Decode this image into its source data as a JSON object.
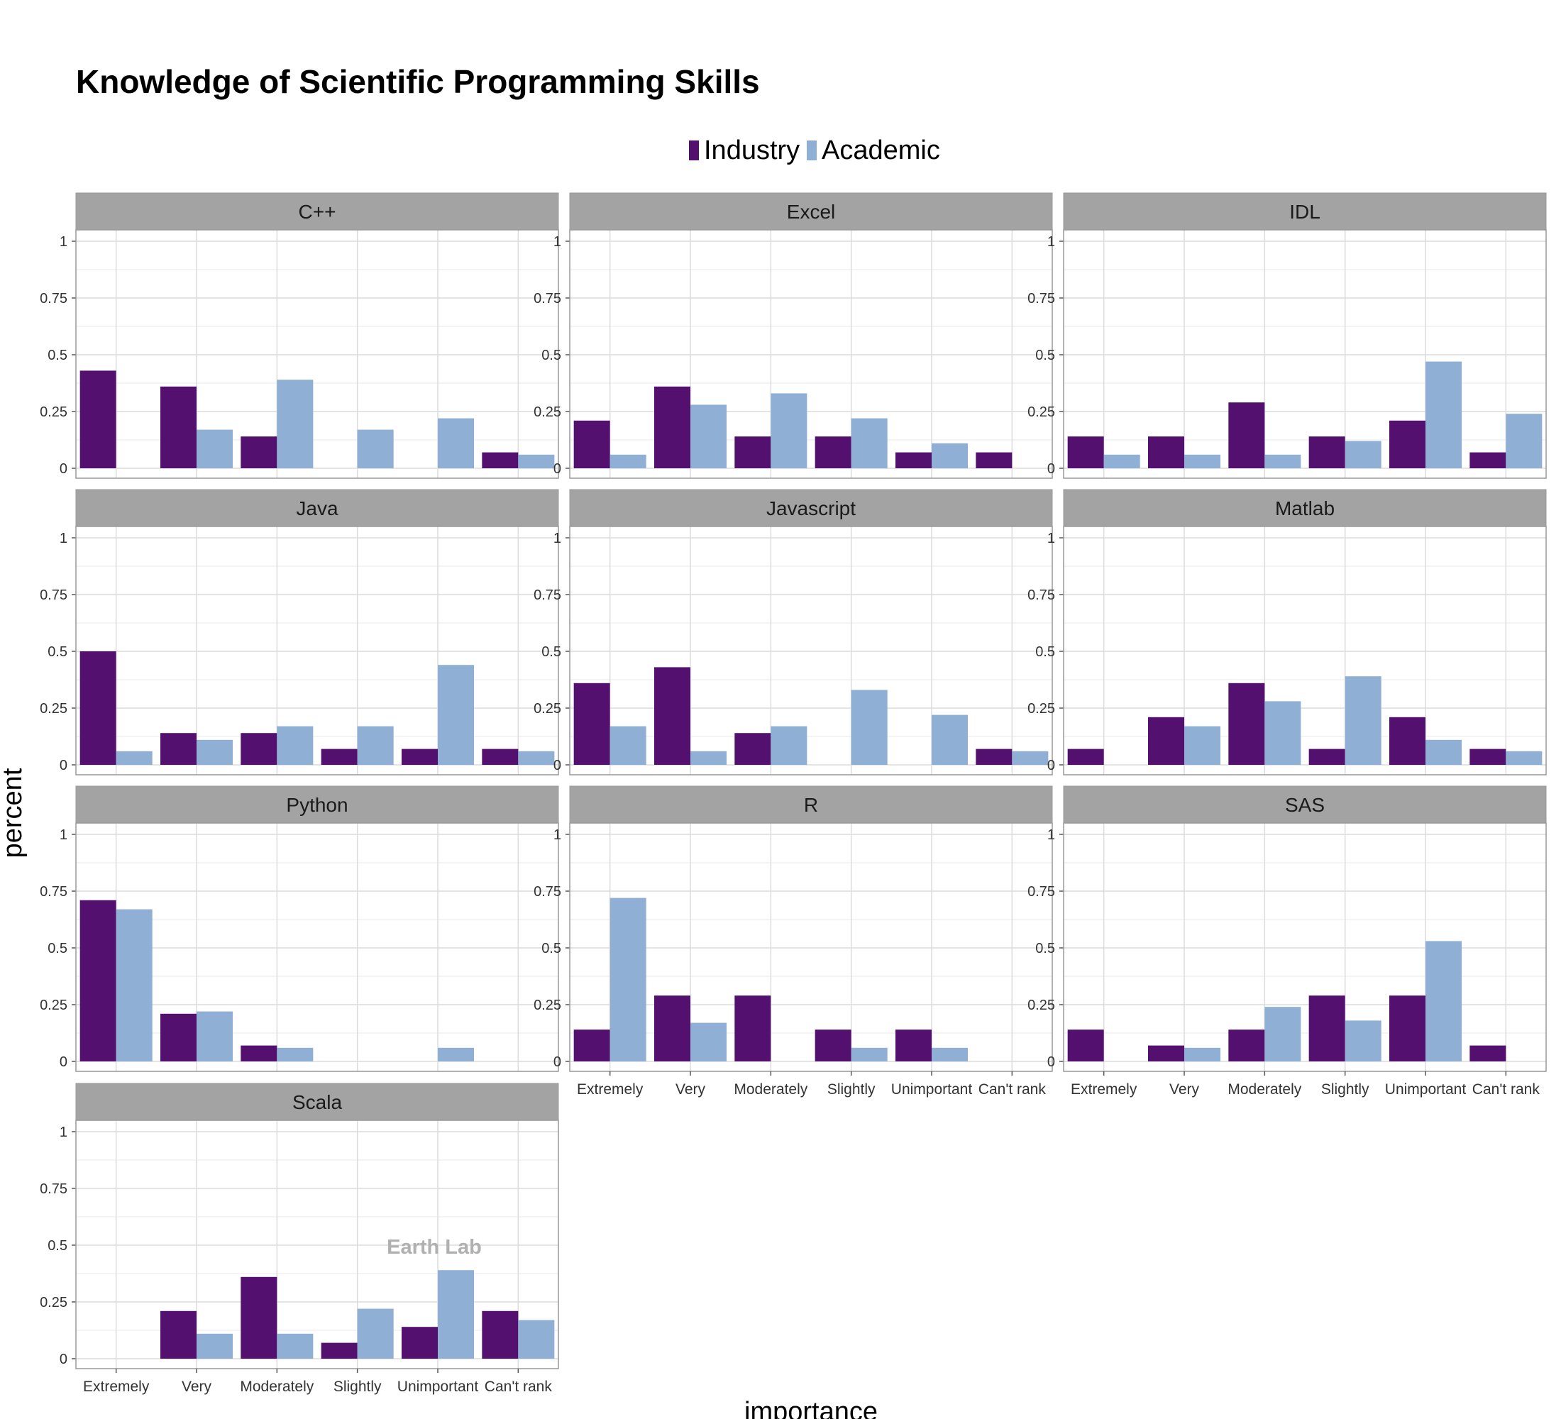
{
  "chart_data": {
    "type": "bar",
    "title": "Knowledge of Scientific Programming Skills",
    "xlabel": "importance",
    "ylabel": "percent",
    "categories": [
      "Extremely",
      "Very",
      "Moderately",
      "Slightly",
      "Unimportant",
      "Can't rank"
    ],
    "ylim": [
      0,
      1.05
    ],
    "yticks": [
      "0",
      "0.25",
      "0.5",
      "0.75",
      "1"
    ],
    "legend": {
      "position": "top",
      "entries": [
        {
          "name": "Industry",
          "color": "#54106f"
        },
        {
          "name": "Academic",
          "color": "#8fafd4"
        }
      ]
    },
    "grid": true,
    "watermark": "Earth Lab",
    "panels": [
      {
        "name": "C++",
        "series": [
          {
            "name": "Industry",
            "values": [
              0.43,
              0.36,
              0.14,
              0,
              0,
              0.07
            ]
          },
          {
            "name": "Academic",
            "values": [
              0,
              0.17,
              0.39,
              0.17,
              0.22,
              0.06
            ]
          }
        ]
      },
      {
        "name": "Excel",
        "series": [
          {
            "name": "Industry",
            "values": [
              0.21,
              0.36,
              0.14,
              0.14,
              0.07,
              0.07
            ]
          },
          {
            "name": "Academic",
            "values": [
              0.06,
              0.28,
              0.33,
              0.22,
              0.11,
              0
            ]
          }
        ]
      },
      {
        "name": "IDL",
        "series": [
          {
            "name": "Industry",
            "values": [
              0.14,
              0.14,
              0.29,
              0.14,
              0.21,
              0.07
            ]
          },
          {
            "name": "Academic",
            "values": [
              0.06,
              0.06,
              0.06,
              0.12,
              0.47,
              0.24
            ]
          }
        ]
      },
      {
        "name": "Java",
        "series": [
          {
            "name": "Industry",
            "values": [
              0.5,
              0.14,
              0.14,
              0.07,
              0.07,
              0.07
            ]
          },
          {
            "name": "Academic",
            "values": [
              0.06,
              0.11,
              0.17,
              0.17,
              0.44,
              0.06
            ]
          }
        ]
      },
      {
        "name": "Javascript",
        "series": [
          {
            "name": "Industry",
            "values": [
              0.36,
              0.43,
              0.14,
              0,
              0,
              0.07
            ]
          },
          {
            "name": "Academic",
            "values": [
              0.17,
              0.06,
              0.17,
              0.33,
              0.22,
              0.06
            ]
          }
        ]
      },
      {
        "name": "Matlab",
        "series": [
          {
            "name": "Industry",
            "values": [
              0.07,
              0.21,
              0.36,
              0.07,
              0.21,
              0.07
            ]
          },
          {
            "name": "Academic",
            "values": [
              0,
              0.17,
              0.28,
              0.39,
              0.11,
              0.06
            ]
          }
        ]
      },
      {
        "name": "Python",
        "series": [
          {
            "name": "Industry",
            "values": [
              0.71,
              0.21,
              0.07,
              0,
              0,
              0
            ]
          },
          {
            "name": "Academic",
            "values": [
              0.67,
              0.22,
              0.06,
              0,
              0.06,
              0
            ]
          }
        ]
      },
      {
        "name": "R",
        "series": [
          {
            "name": "Industry",
            "values": [
              0.14,
              0.29,
              0.29,
              0.14,
              0.14,
              0
            ]
          },
          {
            "name": "Academic",
            "values": [
              0.72,
              0.17,
              0,
              0.06,
              0.06,
              0
            ]
          }
        ]
      },
      {
        "name": "SAS",
        "series": [
          {
            "name": "Industry",
            "values": [
              0.14,
              0.07,
              0.14,
              0.29,
              0.29,
              0.07
            ]
          },
          {
            "name": "Academic",
            "values": [
              0,
              0.06,
              0.24,
              0.18,
              0.53,
              0
            ]
          }
        ]
      },
      {
        "name": "Scala",
        "series": [
          {
            "name": "Industry",
            "values": [
              0,
              0.21,
              0.36,
              0.07,
              0.14,
              0.21
            ]
          },
          {
            "name": "Academic",
            "values": [
              0,
              0.11,
              0.11,
              0.22,
              0.39,
              0.17
            ]
          }
        ]
      }
    ]
  }
}
